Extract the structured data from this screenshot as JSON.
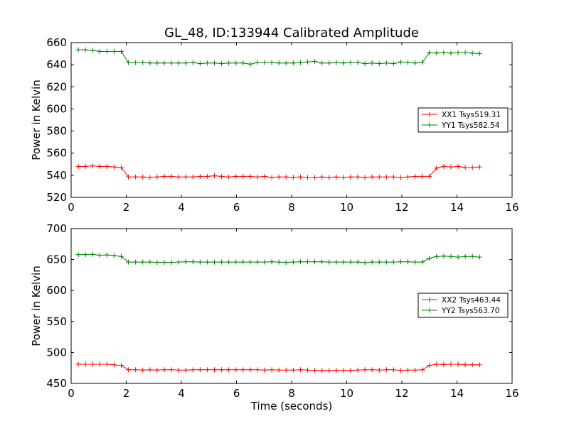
{
  "chart_data": [
    {
      "type": "line",
      "title": "GL_48, ID:133944 Calibrated Amplitude",
      "xlabel": "",
      "ylabel": "Power in Kelvin",
      "xlim": [
        0,
        16
      ],
      "ylim": [
        520,
        660
      ],
      "xticks": [
        0,
        2,
        4,
        6,
        8,
        10,
        12,
        14,
        16
      ],
      "yticks": [
        520,
        540,
        560,
        580,
        600,
        620,
        640,
        660
      ],
      "grid": false,
      "legend_position": "center-right",
      "x": [
        0.26,
        0.52,
        0.78,
        1.04,
        1.3,
        1.56,
        1.82,
        2.08,
        2.34,
        2.6,
        2.86,
        3.12,
        3.38,
        3.64,
        3.9,
        4.16,
        4.42,
        4.68,
        4.94,
        5.2,
        5.46,
        5.72,
        5.98,
        6.24,
        6.5,
        6.76,
        7.02,
        7.28,
        7.54,
        7.8,
        8.06,
        8.32,
        8.58,
        8.84,
        9.1,
        9.36,
        9.62,
        9.88,
        10.14,
        10.4,
        10.66,
        10.92,
        11.18,
        11.44,
        11.7,
        11.96,
        12.22,
        12.48,
        12.74,
        13.0,
        13.26,
        13.52,
        13.78,
        14.04,
        14.3,
        14.56,
        14.82
      ],
      "series": [
        {
          "name": "XX1 Tsys519.31",
          "color": "#ff0000",
          "values": [
            548,
            548,
            548.5,
            548,
            548,
            547.5,
            547,
            538.5,
            538.5,
            538.5,
            538,
            538.5,
            539,
            539,
            538.5,
            538.5,
            538.5,
            539,
            539,
            539.5,
            539,
            538.5,
            539,
            539,
            539,
            538.5,
            539,
            538,
            538.5,
            538.5,
            538,
            538.5,
            538,
            538,
            538.5,
            538,
            538.5,
            538,
            538.5,
            538.5,
            538,
            538.5,
            538.5,
            538.5,
            538.5,
            538,
            538.5,
            539,
            539,
            539,
            546.5,
            548,
            547.5,
            548,
            547,
            547,
            547.5
          ]
        },
        {
          "name": "YY1 Tsys582.54",
          "color": "#008000",
          "values": [
            653.5,
            653.5,
            653,
            652,
            652,
            652,
            652,
            642,
            642,
            642,
            641.5,
            641.5,
            641.5,
            641.5,
            641.5,
            641.5,
            642,
            641,
            641.5,
            641.5,
            641,
            641.5,
            641.5,
            641.5,
            640.5,
            642,
            642,
            642,
            641.5,
            641.5,
            641.5,
            642,
            642.5,
            643,
            641.5,
            641.5,
            642,
            641.5,
            642,
            642,
            641,
            641.5,
            641,
            641.5,
            641,
            642.5,
            642,
            641.5,
            642,
            651,
            650.5,
            651,
            650.5,
            651,
            651,
            650.5,
            650
          ]
        }
      ]
    },
    {
      "type": "line",
      "title": "",
      "xlabel": "Time (seconds)",
      "ylabel": "Power in Kelvin",
      "xlim": [
        0,
        16
      ],
      "ylim": [
        450,
        700
      ],
      "xticks": [
        0,
        2,
        4,
        6,
        8,
        10,
        12,
        14,
        16
      ],
      "yticks": [
        450,
        500,
        550,
        600,
        650,
        700
      ],
      "grid": false,
      "legend_position": "center-right",
      "x": [
        0.26,
        0.52,
        0.78,
        1.04,
        1.3,
        1.56,
        1.82,
        2.08,
        2.34,
        2.6,
        2.86,
        3.12,
        3.38,
        3.64,
        3.9,
        4.16,
        4.42,
        4.68,
        4.94,
        5.2,
        5.46,
        5.72,
        5.98,
        6.24,
        6.5,
        6.76,
        7.02,
        7.28,
        7.54,
        7.8,
        8.06,
        8.32,
        8.58,
        8.84,
        9.1,
        9.36,
        9.62,
        9.88,
        10.14,
        10.4,
        10.66,
        10.92,
        11.18,
        11.44,
        11.7,
        11.96,
        12.22,
        12.48,
        12.74,
        13.0,
        13.26,
        13.52,
        13.78,
        14.04,
        14.3,
        14.56,
        14.82
      ],
      "series": [
        {
          "name": "XX2 Tsys463.44",
          "color": "#ff0000",
          "values": [
            481,
            481,
            481,
            481,
            481,
            480,
            479,
            472,
            472,
            471.5,
            472,
            471.5,
            472,
            472,
            471.5,
            471.5,
            472,
            472,
            472,
            472,
            472,
            472,
            472,
            472,
            472,
            472,
            471.5,
            472,
            471.5,
            471.5,
            471.5,
            472,
            471.5,
            471,
            471,
            471,
            471,
            471,
            471,
            471.5,
            472,
            472,
            471.5,
            472,
            472,
            471,
            471.5,
            471.5,
            472,
            479,
            481,
            480.5,
            481,
            481,
            480,
            480,
            480
          ]
        },
        {
          "name": "YY2 Tsys563.70",
          "color": "#008000",
          "values": [
            658,
            658,
            658.5,
            657,
            657.5,
            656.5,
            655,
            646,
            646,
            646,
            646,
            645.5,
            645.5,
            645.5,
            646,
            646.5,
            646.5,
            646,
            646,
            646,
            646,
            646,
            646,
            646,
            646,
            646,
            646,
            646.5,
            646,
            645.5,
            646,
            646.5,
            646.5,
            646.5,
            646.5,
            646,
            646,
            646,
            646,
            646,
            645,
            646,
            646,
            646,
            646,
            646.5,
            646.5,
            646,
            646,
            652,
            655,
            655.5,
            655,
            654,
            655,
            655,
            654
          ]
        }
      ]
    }
  ]
}
